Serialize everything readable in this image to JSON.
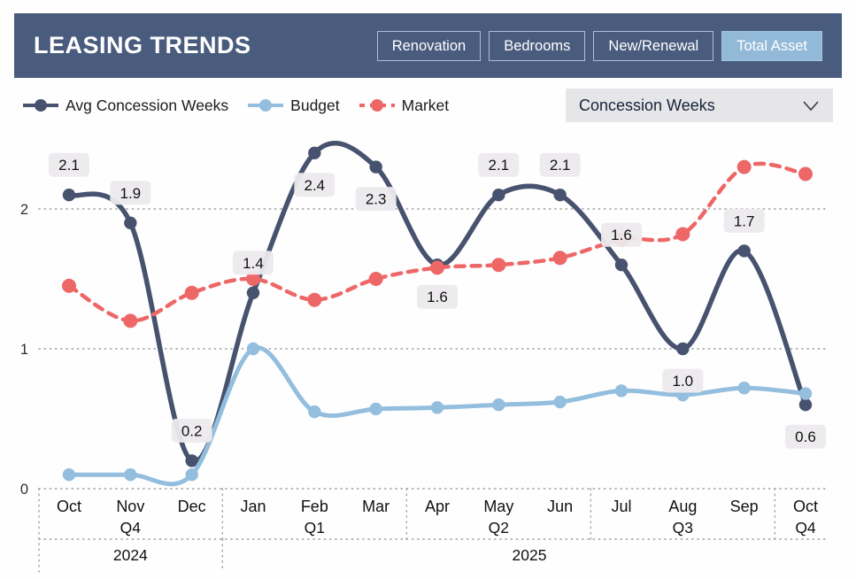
{
  "header": {
    "title": "LEASING TRENDS",
    "tabs": [
      {
        "label": "Renovation",
        "active": false
      },
      {
        "label": "Bedrooms",
        "active": false
      },
      {
        "label": "New/Renewal",
        "active": false
      },
      {
        "label": "Total Asset",
        "active": true
      }
    ]
  },
  "legend": {
    "items": [
      {
        "label": "Avg Concession Weeks",
        "color": "#47536e",
        "style": "solid"
      },
      {
        "label": "Budget",
        "color": "#93bedd",
        "style": "solid"
      },
      {
        "label": "Market",
        "color": "#ee6767",
        "style": "dashed"
      }
    ]
  },
  "filter": {
    "value": "Concession Weeks",
    "icon": "chevron-down-icon"
  },
  "chart_data": {
    "type": "line",
    "title": "Leasing trends - concession weeks by month",
    "categories": [
      "Oct",
      "Nov",
      "Dec",
      "Jan",
      "Feb",
      "Mar",
      "Apr",
      "May",
      "Jun",
      "Jul",
      "Aug",
      "Sep",
      "Oct"
    ],
    "x_groups": {
      "quarters": [
        {
          "label": "Q4",
          "start": 0,
          "end": 2
        },
        {
          "label": "Q1",
          "start": 3,
          "end": 5
        },
        {
          "label": "Q2",
          "start": 6,
          "end": 8
        },
        {
          "label": "Q3",
          "start": 9,
          "end": 11
        },
        {
          "label": "Q4",
          "start": 12,
          "end": 12
        }
      ],
      "years": [
        {
          "label": "2024",
          "start": 0,
          "end": 2
        },
        {
          "label": "2025",
          "start": 3,
          "end": 12
        }
      ]
    },
    "y_axis": {
      "ticks": [
        0,
        1,
        2
      ],
      "min": 0,
      "max": 2.6,
      "grid": "dotted"
    },
    "series": [
      {
        "name": "Avg Concession Weeks",
        "color": "#47536e",
        "style": "solid",
        "line_width": 5.5,
        "point_radius": 7.2,
        "values": [
          2.1,
          1.9,
          0.2,
          1.4,
          2.4,
          2.3,
          1.6,
          2.1,
          2.1,
          1.6,
          1.0,
          1.7,
          0.6
        ]
      },
      {
        "name": "Budget",
        "color": "#93bedd",
        "style": "solid",
        "line_width": 5,
        "point_radius": 7.2,
        "values": [
          0.1,
          0.1,
          0.1,
          1.0,
          0.55,
          0.57,
          0.58,
          0.6,
          0.62,
          0.7,
          0.67,
          0.72,
          0.68
        ]
      },
      {
        "name": "Market",
        "color": "#ee6767",
        "style": "dashed",
        "line_width": 4.5,
        "point_radius": 8,
        "values": [
          1.45,
          1.2,
          1.4,
          1.5,
          1.35,
          1.5,
          1.58,
          1.6,
          1.65,
          1.78,
          1.82,
          2.3,
          2.25
        ]
      }
    ],
    "label_series": "Avg Concession Weeks",
    "point_labels": [
      {
        "text": "2.1",
        "pos": "above"
      },
      {
        "text": "1.9",
        "pos": "above"
      },
      {
        "text": "0.2",
        "pos": "above"
      },
      {
        "text": "1.4",
        "pos": "above"
      },
      {
        "text": "2.4",
        "pos": "below"
      },
      {
        "text": "2.3",
        "pos": "below"
      },
      {
        "text": "1.6",
        "pos": "below"
      },
      {
        "text": "2.1",
        "pos": "above"
      },
      {
        "text": "2.1",
        "pos": "above"
      },
      {
        "text": "1.6",
        "pos": "above"
      },
      {
        "text": "1.0",
        "pos": "below"
      },
      {
        "text": "1.7",
        "pos": "above"
      },
      {
        "text": "0.6",
        "pos": "below"
      }
    ],
    "label_style": {
      "background": "#eceaed",
      "text_color": "#111111"
    },
    "grid_color": "#9b9b9b"
  }
}
